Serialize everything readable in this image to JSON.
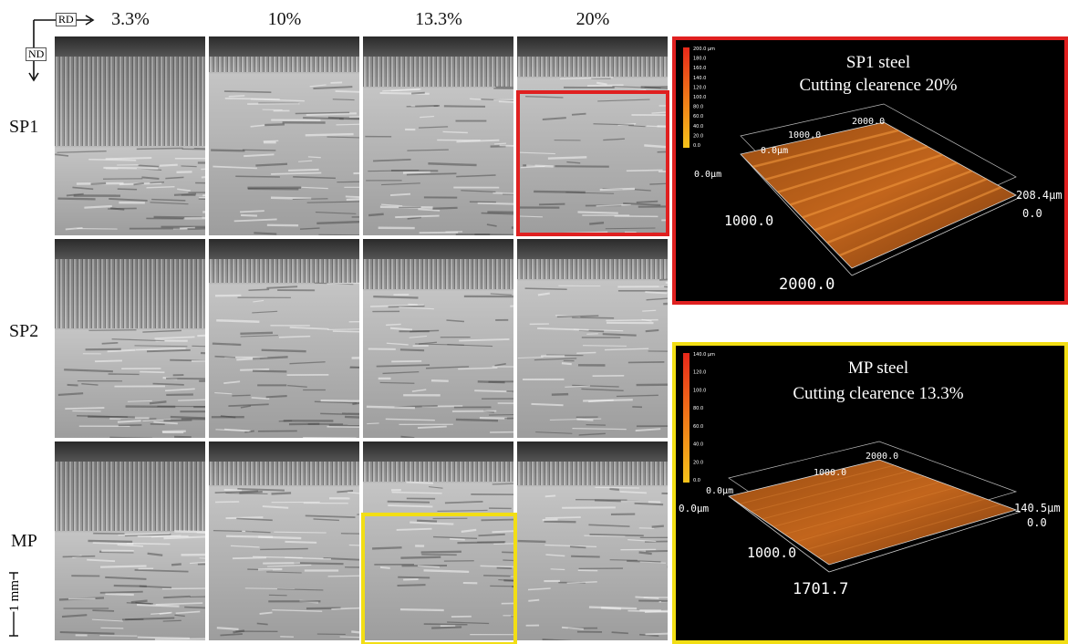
{
  "axes": {
    "rd": "RD",
    "nd": "ND"
  },
  "columns": [
    "3.3%",
    "10%",
    "13.3%",
    "20%"
  ],
  "rows": [
    "SP1",
    "SP2",
    "MP"
  ],
  "scale": "1 mm",
  "profiles": [
    {
      "title": "SP1 steel",
      "subtitle": "Cutting clearence 20%",
      "colorbar": [
        "200.0 µm",
        "180.0",
        "160.0",
        "140.0",
        "120.0",
        "100.0",
        "80.0",
        "60.0",
        "40.0",
        "20.0",
        "0.0"
      ],
      "axis_labels": [
        "1000.0",
        "2000.0",
        "0.0µm",
        "0.0µm",
        "208.4µm",
        "0.0",
        "1000.0",
        "2000.0"
      ]
    },
    {
      "title": "MP steel",
      "subtitle": "Cutting clearence 13.3%",
      "colorbar": [
        "140.0 µm",
        "120.0",
        "100.0",
        "80.0",
        "60.0",
        "40.0",
        "20.0",
        "0.0"
      ],
      "axis_labels": [
        "1000.0",
        "2000.0",
        "0.0µm",
        "0.0µm",
        "140.5µm",
        "0.0",
        "1000.0",
        "1701.7"
      ]
    }
  ]
}
